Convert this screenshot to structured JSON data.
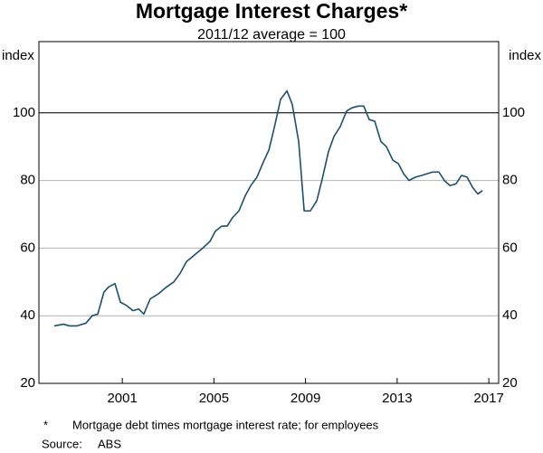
{
  "chart_data": {
    "type": "line",
    "title": "Mortgage Interest Charges*",
    "subtitle": "2011/12 average = 100",
    "y_label": "index",
    "y2_label": "index",
    "x": [
      1998.03,
      1998.43,
      1998.7,
      1999.02,
      1999.41,
      1999.69,
      1999.93,
      2000.2,
      2000.4,
      2000.68,
      2000.92,
      2001.19,
      2001.47,
      2001.71,
      2001.94,
      2002.22,
      2002.58,
      2002.93,
      2003.25,
      2003.52,
      2003.8,
      2004.16,
      2004.51,
      2004.83,
      2005.06,
      2005.34,
      2005.58,
      2005.81,
      2006.09,
      2006.37,
      2006.61,
      2006.88,
      2007.16,
      2007.4,
      2007.63,
      2007.91,
      2008.19,
      2008.42,
      2008.7,
      2008.94,
      2009.21,
      2009.49,
      2009.73,
      2010.0,
      2010.24,
      2010.52,
      2010.79,
      2011.03,
      2011.31,
      2011.54,
      2011.78,
      2012.02,
      2012.29,
      2012.53,
      2012.81,
      2013.05,
      2013.28,
      2013.52,
      2013.8,
      2014.07,
      2014.31,
      2014.55,
      2014.82,
      2015.06,
      2015.3,
      2015.57,
      2015.81,
      2016.05,
      2016.29,
      2016.52,
      2016.72
    ],
    "series": [
      {
        "name": "Mortgage interest charges",
        "color": "#1d4f6a",
        "values": [
          37,
          37.5,
          37,
          37,
          37.8,
          40,
          40.5,
          47,
          48.5,
          49.5,
          44,
          43,
          41.5,
          42,
          40.5,
          45,
          46.5,
          48.5,
          50,
          52.5,
          56,
          58,
          60,
          62,
          65,
          66.5,
          66.5,
          69,
          71,
          75.5,
          78.5,
          81,
          85.5,
          89,
          95.5,
          104,
          106.5,
          102.5,
          91.5,
          71,
          71,
          74,
          80.5,
          88.5,
          93,
          96,
          100.5,
          101.5,
          102,
          102,
          98,
          97.5,
          91.5,
          90,
          86,
          85,
          82,
          80,
          81,
          81.5,
          82,
          82.5,
          82.5,
          80,
          78.5,
          79,
          81.5,
          81,
          78,
          76,
          77
        ]
      }
    ],
    "xlim": [
      1997.36,
      2017.43
    ],
    "xticks": [
      2001,
      2005,
      2009,
      2013,
      2017
    ],
    "ylim": [
      20,
      120
    ],
    "yticks": [
      20,
      40,
      60,
      80,
      100
    ],
    "reference_line": 100,
    "grid": true,
    "notes": [
      {
        "marker": "*",
        "text": "Mortgage debt times mortgage interest rate; for employees"
      }
    ],
    "source_label": "Source:",
    "source": "ABS"
  }
}
